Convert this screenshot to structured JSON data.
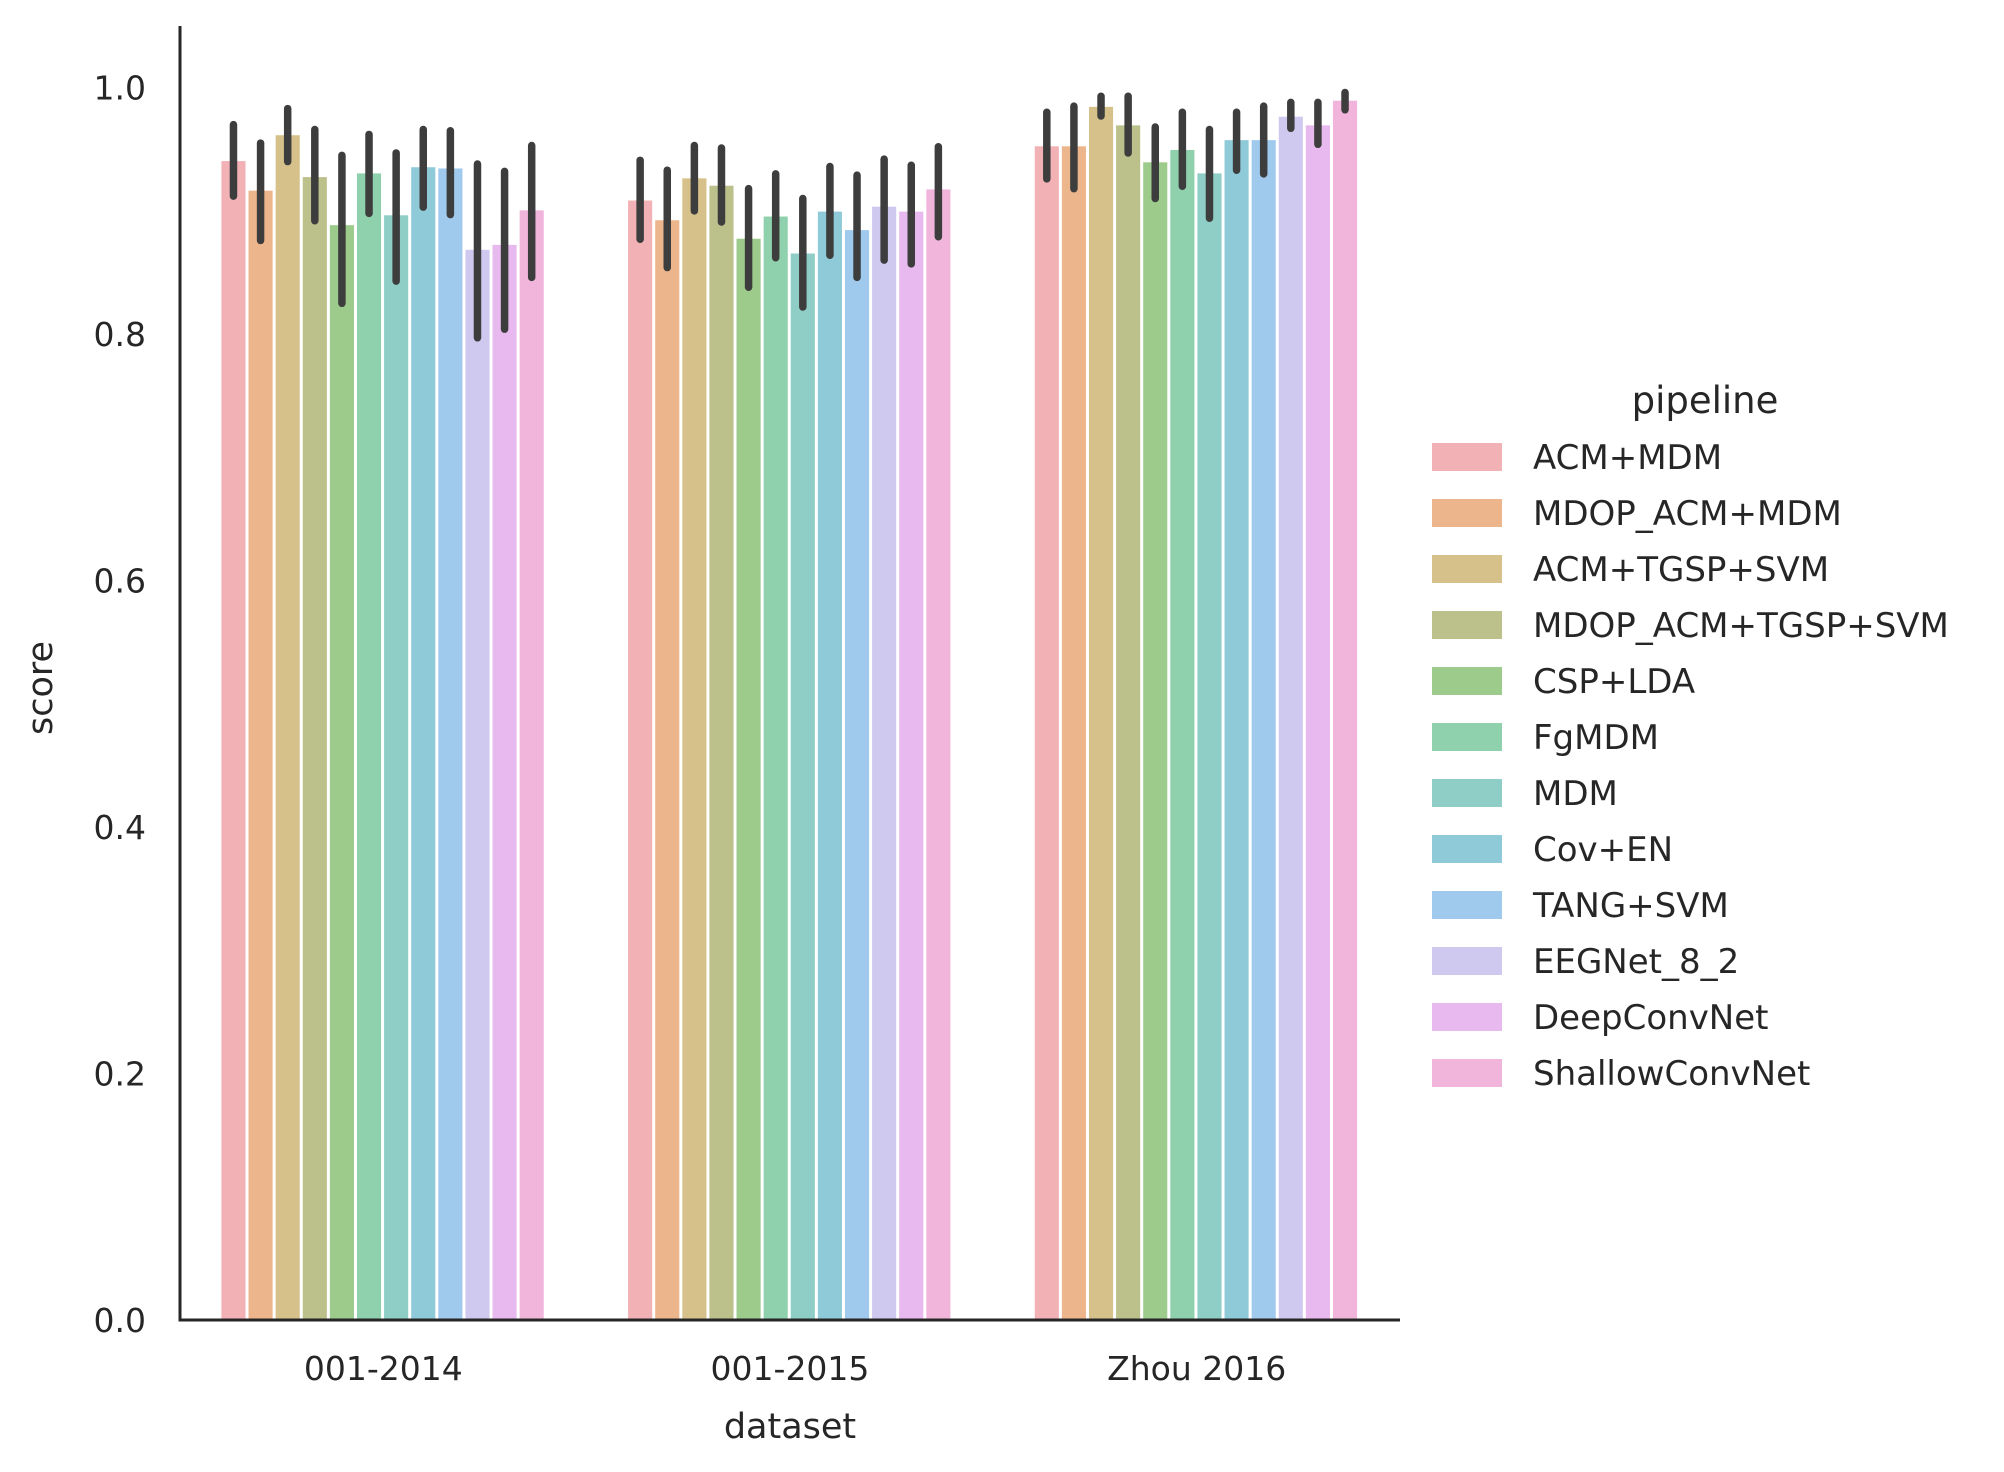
{
  "chart_data": {
    "type": "bar",
    "xlabel": "dataset",
    "ylabel": "score",
    "ylim": [
      0,
      1.05
    ],
    "yticks": [
      0.0,
      0.2,
      0.4,
      0.6,
      0.8,
      1.0
    ],
    "ytick_labels": [
      "0.0",
      "0.2",
      "0.4",
      "0.6",
      "0.8",
      "1.0"
    ],
    "categories": [
      "001-2014",
      "001-2015",
      "Zhou 2016"
    ],
    "legend": {
      "title": "pipeline",
      "placement": "right"
    },
    "grid": false,
    "error_bars": true,
    "series": [
      {
        "name": "ACM+MDM",
        "color": "#f1b1b5",
        "values": [
          0.941,
          0.909,
          0.953
        ],
        "err_low": [
          0.912,
          0.877,
          0.926
        ],
        "err_high": [
          0.97,
          0.941,
          0.98
        ]
      },
      {
        "name": "MDOP_ACM+MDM",
        "color": "#edb58b",
        "values": [
          0.917,
          0.893,
          0.953
        ],
        "err_low": [
          0.876,
          0.854,
          0.918
        ],
        "err_high": [
          0.955,
          0.933,
          0.985
        ]
      },
      {
        "name": "ACM+TGSP+SVM",
        "color": "#d6c18b",
        "values": [
          0.962,
          0.927,
          0.985
        ],
        "err_low": [
          0.94,
          0.9,
          0.977
        ],
        "err_high": [
          0.983,
          0.953,
          0.993
        ]
      },
      {
        "name": "MDOP_ACM+TGSP+SVM",
        "color": "#bcc08b",
        "values": [
          0.928,
          0.921,
          0.97
        ],
        "err_low": [
          0.892,
          0.891,
          0.947
        ],
        "err_high": [
          0.966,
          0.951,
          0.993
        ]
      },
      {
        "name": "CSP+LDA",
        "color": "#9ccb8b",
        "values": [
          0.889,
          0.878,
          0.94
        ],
        "err_low": [
          0.825,
          0.838,
          0.91
        ],
        "err_high": [
          0.945,
          0.918,
          0.968
        ]
      },
      {
        "name": "FgMDM",
        "color": "#8fd0ad",
        "values": [
          0.931,
          0.896,
          0.95
        ],
        "err_low": [
          0.898,
          0.862,
          0.92
        ],
        "err_high": [
          0.962,
          0.93,
          0.98
        ]
      },
      {
        "name": "MDM",
        "color": "#8ecec6",
        "values": [
          0.897,
          0.866,
          0.931
        ],
        "err_low": [
          0.843,
          0.822,
          0.894
        ],
        "err_high": [
          0.947,
          0.91,
          0.966
        ]
      },
      {
        "name": "Cov+EN",
        "color": "#8fcad8",
        "values": [
          0.936,
          0.9,
          0.958
        ],
        "err_low": [
          0.903,
          0.864,
          0.933
        ],
        "err_high": [
          0.966,
          0.936,
          0.98
        ]
      },
      {
        "name": "TANG+SVM",
        "color": "#9fcaee",
        "values": [
          0.935,
          0.885,
          0.958
        ],
        "err_low": [
          0.897,
          0.846,
          0.93
        ],
        "err_high": [
          0.965,
          0.929,
          0.985
        ]
      },
      {
        "name": "EEGNet_8_2",
        "color": "#cfc8ef",
        "values": [
          0.869,
          0.904,
          0.977
        ],
        "err_low": [
          0.797,
          0.86,
          0.967
        ],
        "err_high": [
          0.938,
          0.942,
          0.988
        ]
      },
      {
        "name": "DeepConvNet",
        "color": "#e8b9ee",
        "values": [
          0.873,
          0.9,
          0.97
        ],
        "err_low": [
          0.804,
          0.857,
          0.954
        ],
        "err_high": [
          0.932,
          0.937,
          0.988
        ]
      },
      {
        "name": "ShallowConvNet",
        "color": "#f1b5dc",
        "values": [
          0.901,
          0.918,
          0.99
        ],
        "err_low": [
          0.846,
          0.879,
          0.982
        ],
        "err_high": [
          0.953,
          0.952,
          0.996
        ]
      }
    ]
  }
}
